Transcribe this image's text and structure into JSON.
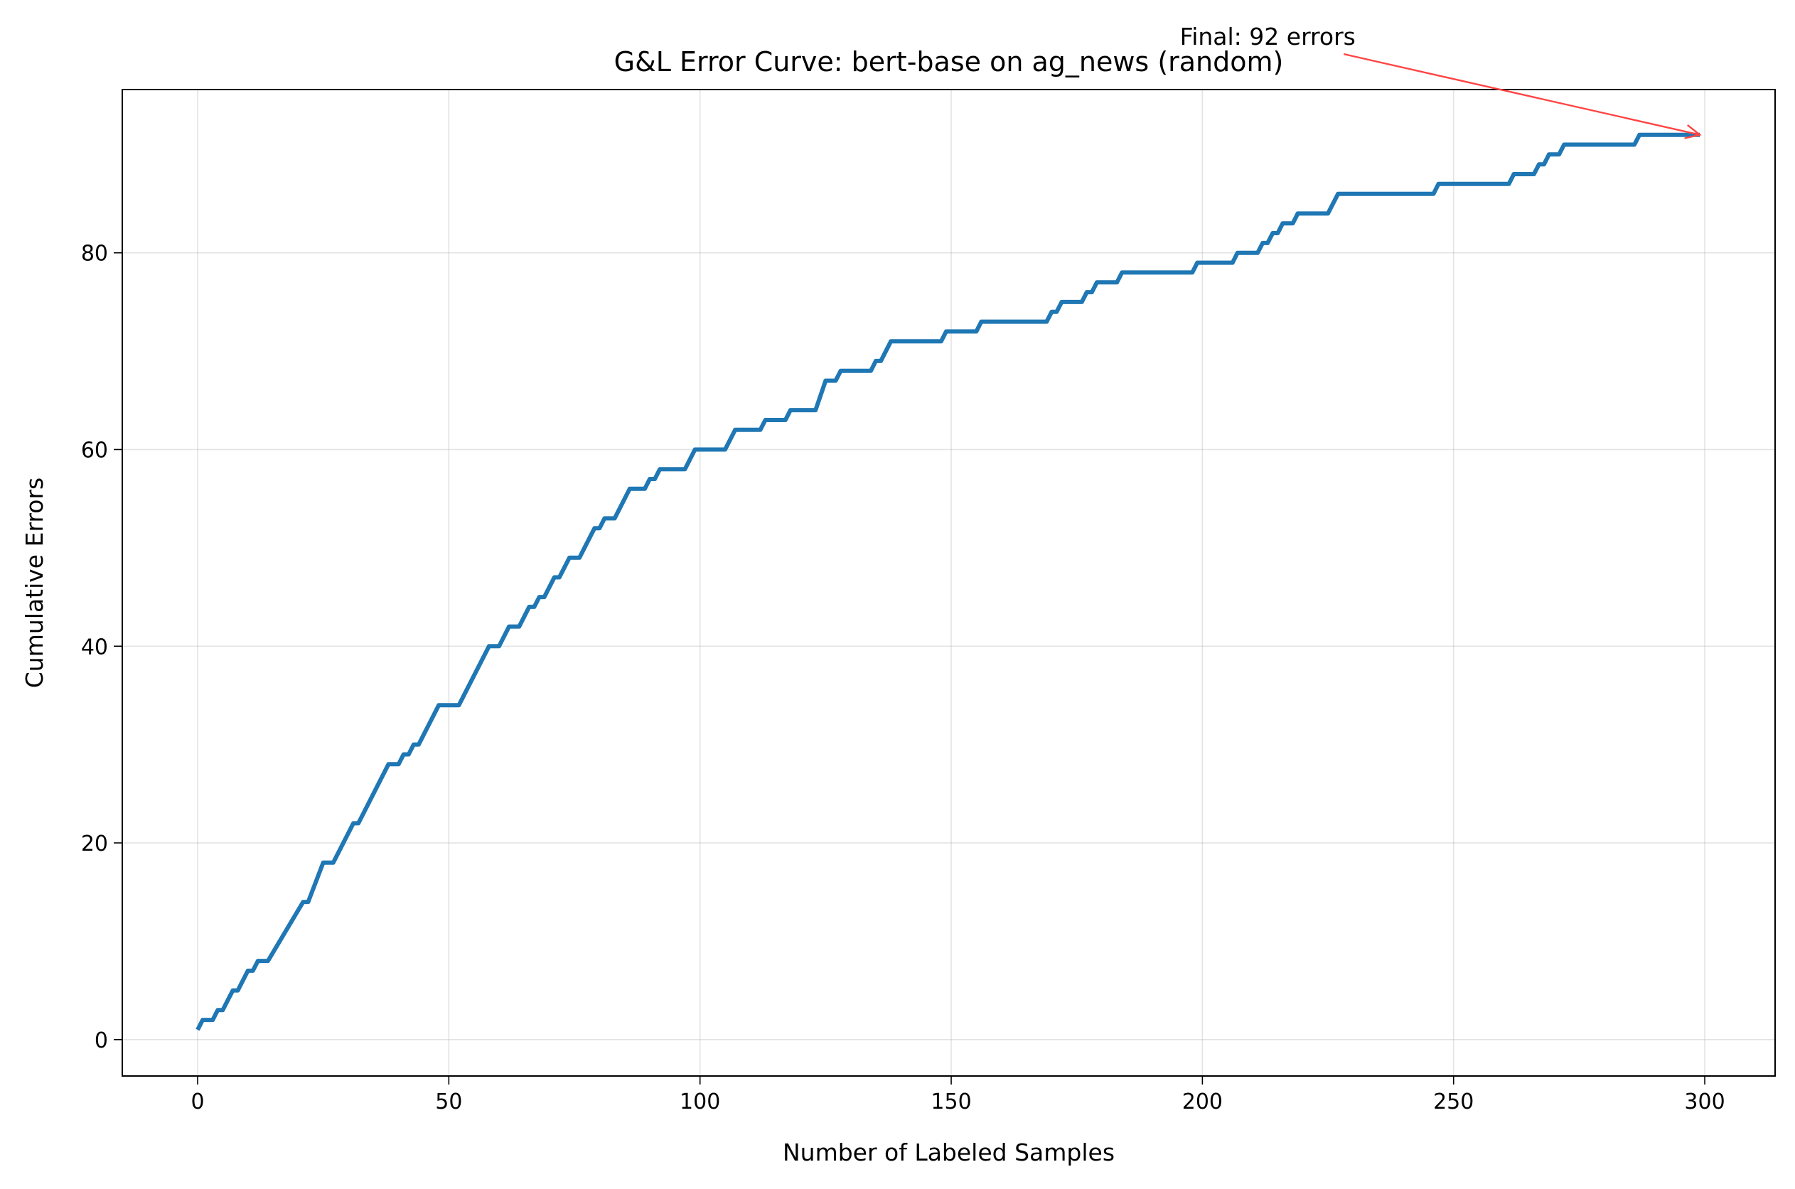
{
  "chart_data": {
    "type": "line",
    "title": "G&L Error Curve: bert-base on ag_news (random)",
    "xlabel": "Number of Labeled Samples",
    "ylabel": "Cumulative Errors",
    "xlim": [
      -15,
      314
    ],
    "ylim": [
      -3.7,
      96.6
    ],
    "xticks": [
      0,
      50,
      100,
      150,
      200,
      250,
      300
    ],
    "yticks": [
      0,
      20,
      40,
      60,
      80
    ],
    "grid": true,
    "line_color": "#1f77b4",
    "annotation": {
      "text": "Final: 92 errors",
      "target": [
        299,
        92
      ],
      "text_anchor_data": [
        213,
        99.7
      ],
      "arrow_color": "#ff4444"
    },
    "series": [
      {
        "points": [
          [
            0,
            1
          ],
          [
            1,
            2
          ],
          [
            3,
            2
          ],
          [
            4,
            3
          ],
          [
            5,
            3
          ],
          [
            6,
            4
          ],
          [
            7,
            5
          ],
          [
            8,
            5
          ],
          [
            9,
            6
          ],
          [
            10,
            7
          ],
          [
            11,
            7
          ],
          [
            12,
            8
          ],
          [
            14,
            8
          ],
          [
            21,
            14
          ],
          [
            22,
            14
          ],
          [
            25,
            18
          ],
          [
            27,
            18
          ],
          [
            31,
            22
          ],
          [
            32,
            22
          ],
          [
            38,
            28
          ],
          [
            40,
            28
          ],
          [
            41,
            29
          ],
          [
            42,
            29
          ],
          [
            43,
            30
          ],
          [
            44,
            30
          ],
          [
            48,
            34
          ],
          [
            52,
            34
          ],
          [
            58,
            40
          ],
          [
            60,
            40
          ],
          [
            62,
            42
          ],
          [
            64,
            42
          ],
          [
            66,
            44
          ],
          [
            67,
            44
          ],
          [
            68,
            45
          ],
          [
            69,
            45
          ],
          [
            71,
            47
          ],
          [
            72,
            47
          ],
          [
            74,
            49
          ],
          [
            76,
            49
          ],
          [
            79,
            52
          ],
          [
            80,
            52
          ],
          [
            81,
            53
          ],
          [
            83,
            53
          ],
          [
            86,
            56
          ],
          [
            89,
            56
          ],
          [
            90,
            57
          ],
          [
            91,
            57
          ],
          [
            92,
            58
          ],
          [
            97,
            58
          ],
          [
            99,
            60
          ],
          [
            105,
            60
          ],
          [
            107,
            62
          ],
          [
            112,
            62
          ],
          [
            113,
            63
          ],
          [
            117,
            63
          ],
          [
            118,
            64
          ],
          [
            123,
            64
          ],
          [
            125,
            67
          ],
          [
            127,
            67
          ],
          [
            128,
            68
          ],
          [
            134,
            68
          ],
          [
            135,
            69
          ],
          [
            136,
            69
          ],
          [
            138,
            71
          ],
          [
            148,
            71
          ],
          [
            149,
            72
          ],
          [
            155,
            72
          ],
          [
            156,
            73
          ],
          [
            169,
            73
          ],
          [
            170,
            74
          ],
          [
            171,
            74
          ],
          [
            172,
            75
          ],
          [
            176,
            75
          ],
          [
            177,
            76
          ],
          [
            178,
            76
          ],
          [
            179,
            77
          ],
          [
            183,
            77
          ],
          [
            184,
            78
          ],
          [
            198,
            78
          ],
          [
            199,
            79
          ],
          [
            206,
            79
          ],
          [
            207,
            80
          ],
          [
            211,
            80
          ],
          [
            212,
            81
          ],
          [
            213,
            81
          ],
          [
            214,
            82
          ],
          [
            215,
            82
          ],
          [
            216,
            83
          ],
          [
            218,
            83
          ],
          [
            219,
            84
          ],
          [
            225,
            84
          ],
          [
            227,
            86
          ],
          [
            246,
            86
          ],
          [
            247,
            87
          ],
          [
            261,
            87
          ],
          [
            262,
            88
          ],
          [
            266,
            88
          ],
          [
            267,
            89
          ],
          [
            268,
            89
          ],
          [
            269,
            90
          ],
          [
            271,
            90
          ],
          [
            272,
            91
          ],
          [
            286,
            91
          ],
          [
            287,
            92
          ],
          [
            299,
            92
          ]
        ]
      }
    ]
  }
}
